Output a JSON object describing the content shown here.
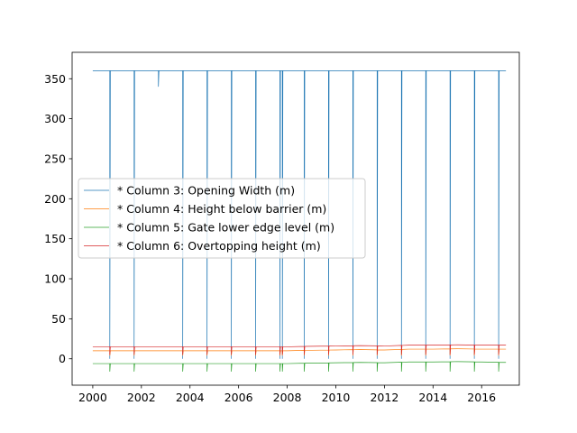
{
  "chart_data": {
    "type": "line",
    "title": "",
    "xlabel": "",
    "ylabel": "",
    "xlim": [
      1999.15,
      2017.55
    ],
    "ylim": [
      -33,
      383
    ],
    "xticks": [
      2000,
      2002,
      2004,
      2006,
      2008,
      2010,
      2012,
      2014,
      2016
    ],
    "xtick_labels": [
      "2000",
      "2002",
      "2004",
      "2006",
      "2008",
      "2010",
      "2012",
      "2014",
      "2016"
    ],
    "yticks": [
      0,
      50,
      100,
      150,
      200,
      250,
      300,
      350
    ],
    "ytick_labels": [
      "0",
      "50",
      "100",
      "150",
      "200",
      "250",
      "300",
      "350"
    ],
    "legend_position": "center-left",
    "x_range": [
      2000.0,
      2017.0
    ],
    "dip_years": [
      2000.7,
      2001.7,
      2003.7,
      2004.7,
      2005.7,
      2006.7,
      2007.7,
      2007.8,
      2008.7,
      2009.7,
      2010.7,
      2011.7,
      2012.7,
      2013.7,
      2014.7,
      2015.7,
      2016.7
    ],
    "series": [
      {
        "name": "* Column 3: Opening Width (m)",
        "color": "#1f77b4",
        "base": [
          [
            2000.0,
            360
          ],
          [
            2017.0,
            360
          ]
        ],
        "dip_to": 0,
        "extra_dips": [
          [
            2002.7,
            340
          ]
        ]
      },
      {
        "name": "* Column 4: Height below barrier (m)",
        "color": "#ff7f0e",
        "base": [
          [
            2000.0,
            10
          ],
          [
            2008.0,
            10
          ],
          [
            2008.7,
            10.5
          ],
          [
            2010.0,
            11
          ],
          [
            2011.0,
            11.5
          ],
          [
            2012.0,
            11
          ],
          [
            2013.0,
            12
          ],
          [
            2014.0,
            12
          ],
          [
            2015.0,
            12.5
          ],
          [
            2016.0,
            12
          ],
          [
            2017.0,
            12
          ]
        ],
        "dip_to": 4
      },
      {
        "name": "* Column 5: Gate lower edge level (m)",
        "color": "#2ca02c",
        "base": [
          [
            2000.0,
            -6
          ],
          [
            2008.0,
            -6
          ],
          [
            2008.7,
            -5.5
          ],
          [
            2010.0,
            -5
          ],
          [
            2011.0,
            -4.5
          ],
          [
            2012.0,
            -5
          ],
          [
            2013.0,
            -4
          ],
          [
            2014.0,
            -4
          ],
          [
            2015.0,
            -3.5
          ],
          [
            2016.0,
            -4
          ],
          [
            2017.0,
            -4.5
          ]
        ],
        "dip_to": -16
      },
      {
        "name": "* Column 6: Overtopping height (m)",
        "color": "#d62728",
        "base": [
          [
            2000.0,
            15
          ],
          [
            2008.0,
            15
          ],
          [
            2008.7,
            15.5
          ],
          [
            2010.0,
            16
          ],
          [
            2011.0,
            16.5
          ],
          [
            2012.0,
            16
          ],
          [
            2013.0,
            17
          ],
          [
            2014.0,
            17
          ],
          [
            2015.0,
            17.5
          ],
          [
            2016.0,
            17
          ],
          [
            2017.0,
            17
          ]
        ],
        "dip_to": 5
      }
    ]
  }
}
